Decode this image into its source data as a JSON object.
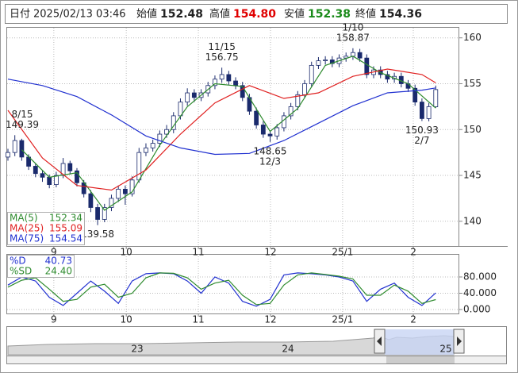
{
  "header": {
    "date_label": "日付",
    "date": "2025/02/13 03:46",
    "open_label": "始値",
    "open": "152.48",
    "high_label": "高値",
    "high": "154.80",
    "low_label": "安値",
    "low": "152.38",
    "close_label": "終値",
    "close": "154.36"
  },
  "chart_data": [
    {
      "type": "candlestick",
      "xlim": [
        0,
        130.6
      ],
      "ylim": [
        137.3,
        161.1
      ],
      "yticks": [
        140,
        145,
        150,
        155,
        160
      ],
      "xticks": [
        {
          "value": 13.3,
          "label": "9"
        },
        {
          "value": 34.3,
          "label": "10"
        },
        {
          "value": 55.2,
          "label": "11"
        },
        {
          "value": 76.1,
          "label": "12"
        },
        {
          "value": 97,
          "label": "25/1"
        },
        {
          "value": 117.5,
          "label": "2"
        }
      ],
      "grid": true,
      "up_color": "#ffffff",
      "down_color": "#1a2a6c",
      "edge_color": "#1a2a6c",
      "candles": [
        [
          0,
          147.0,
          147.9,
          146.6,
          147.5
        ],
        [
          2,
          147.5,
          149.39,
          147.1,
          148.8
        ],
        [
          4,
          148.8,
          149.0,
          146.6,
          147.0
        ],
        [
          6,
          147.0,
          147.3,
          145.6,
          146.0
        ],
        [
          8,
          146.0,
          146.3,
          144.8,
          145.2
        ],
        [
          10,
          145.2,
          145.6,
          144.3,
          144.8
        ],
        [
          12,
          144.8,
          145.1,
          143.6,
          144.0
        ],
        [
          14,
          144.0,
          145.4,
          143.7,
          145.0
        ],
        [
          16,
          145.0,
          146.9,
          144.7,
          146.3
        ],
        [
          18,
          146.3,
          146.6,
          145.1,
          145.5
        ],
        [
          20,
          145.5,
          145.8,
          143.8,
          144.2
        ],
        [
          22,
          144.2,
          144.5,
          142.6,
          143.0
        ],
        [
          24,
          143.0,
          143.4,
          141.0,
          141.5
        ],
        [
          26,
          141.5,
          141.9,
          139.58,
          140.2
        ],
        [
          28,
          140.2,
          141.9,
          139.9,
          141.5
        ],
        [
          30,
          141.5,
          142.9,
          141.1,
          142.5
        ],
        [
          32,
          142.5,
          143.9,
          142.1,
          143.5
        ],
        [
          34,
          143.5,
          143.9,
          141.8,
          143.0
        ],
        [
          36,
          143.0,
          144.9,
          142.7,
          144.5
        ],
        [
          38,
          144.5,
          148.0,
          144.2,
          147.5
        ],
        [
          40,
          147.5,
          148.5,
          147.1,
          148.0
        ],
        [
          42,
          148.0,
          148.9,
          147.6,
          148.5
        ],
        [
          44,
          148.5,
          149.9,
          148.1,
          149.5
        ],
        [
          46,
          149.5,
          150.5,
          149.1,
          150.0
        ],
        [
          48,
          150.0,
          151.9,
          149.6,
          151.5
        ],
        [
          50,
          151.5,
          153.4,
          151.1,
          153.0
        ],
        [
          52,
          153.0,
          154.5,
          152.6,
          154.0
        ],
        [
          54,
          154.0,
          154.4,
          153.0,
          153.5
        ],
        [
          56,
          153.5,
          154.4,
          153.1,
          154.0
        ],
        [
          58,
          154.0,
          155.2,
          153.6,
          154.8
        ],
        [
          60,
          154.8,
          155.9,
          154.4,
          155.5
        ],
        [
          62,
          155.5,
          156.75,
          155.1,
          156.0
        ],
        [
          64,
          156.0,
          156.4,
          154.9,
          155.3
        ],
        [
          66,
          155.3,
          155.7,
          154.4,
          154.8
        ],
        [
          68,
          154.8,
          155.2,
          153.1,
          153.5
        ],
        [
          70,
          153.5,
          153.9,
          151.6,
          152.0
        ],
        [
          72,
          152.0,
          152.4,
          150.1,
          150.5
        ],
        [
          74,
          150.5,
          150.9,
          149.1,
          149.5
        ],
        [
          76,
          149.5,
          149.9,
          148.65,
          149.3
        ],
        [
          78,
          149.3,
          150.6,
          148.9,
          150.2
        ],
        [
          80,
          150.2,
          151.9,
          149.8,
          151.5
        ],
        [
          82,
          151.5,
          152.9,
          151.1,
          152.5
        ],
        [
          84,
          152.5,
          154.2,
          152.1,
          153.8
        ],
        [
          86,
          153.8,
          155.4,
          153.4,
          155.0
        ],
        [
          88,
          155.0,
          157.4,
          154.6,
          157.0
        ],
        [
          90,
          157.0,
          157.9,
          156.6,
          157.5
        ],
        [
          92,
          157.5,
          158.0,
          157.1,
          157.6
        ],
        [
          94,
          157.6,
          158.0,
          156.8,
          157.2
        ],
        [
          96,
          157.2,
          158.2,
          156.8,
          157.8
        ],
        [
          98,
          157.8,
          158.4,
          157.4,
          158.0
        ],
        [
          100,
          158.0,
          158.87,
          157.6,
          158.4
        ],
        [
          102,
          158.4,
          158.8,
          157.4,
          157.8
        ],
        [
          104,
          157.8,
          158.2,
          155.6,
          156.0
        ],
        [
          106,
          156.0,
          156.9,
          155.6,
          156.5
        ],
        [
          108,
          156.5,
          156.9,
          155.6,
          156.0
        ],
        [
          110,
          156.0,
          156.4,
          155.1,
          155.5
        ],
        [
          112,
          155.5,
          156.2,
          155.1,
          155.8
        ],
        [
          114,
          155.8,
          156.2,
          154.6,
          155.0
        ],
        [
          116,
          155.0,
          155.4,
          154.1,
          154.5
        ],
        [
          118,
          154.5,
          154.9,
          152.6,
          153.0
        ],
        [
          120,
          153.0,
          153.4,
          150.93,
          151.2
        ],
        [
          122,
          151.2,
          152.9,
          150.9,
          152.5
        ],
        [
          124,
          152.48,
          154.8,
          152.38,
          154.36
        ]
      ],
      "series": [
        {
          "name": "MA(5)",
          "last": "152.34",
          "color": "#2e8b2e",
          "x": [
            4,
            12,
            20,
            28,
            36,
            44,
            52,
            60,
            68,
            76,
            84,
            92,
            100,
            108,
            116,
            124
          ],
          "values": [
            147.8,
            144.8,
            145.3,
            141.2,
            143.2,
            148.3,
            152.5,
            155.0,
            154.7,
            149.8,
            152.3,
            157.0,
            158.0,
            156.2,
            155.0,
            152.34
          ]
        },
        {
          "name": "MA(25)",
          "last": "155.09",
          "color": "#e02020",
          "x": [
            0,
            10,
            20,
            30,
            40,
            50,
            60,
            70,
            80,
            90,
            100,
            110,
            120,
            124
          ],
          "values": [
            152.1,
            146.9,
            143.9,
            143.4,
            145.6,
            149.5,
            152.9,
            154.8,
            153.4,
            154.0,
            155.8,
            156.6,
            156.0,
            155.09
          ]
        },
        {
          "name": "MA(75)",
          "last": "154.54",
          "color": "#2030d0",
          "x": [
            0,
            10,
            20,
            30,
            40,
            50,
            60,
            70,
            80,
            90,
            100,
            110,
            120,
            124
          ],
          "values": [
            155.5,
            154.8,
            153.6,
            151.6,
            149.3,
            148.0,
            147.3,
            147.4,
            148.8,
            150.7,
            152.6,
            154.0,
            154.3,
            154.54
          ]
        }
      ],
      "annotations": [
        {
          "date": "8/15",
          "value": 149.39,
          "x": 2,
          "position": "above"
        },
        {
          "value": 139.58,
          "x": 26,
          "position": "below"
        },
        {
          "date": "11/15",
          "value": 156.75,
          "x": 62,
          "position": "above"
        },
        {
          "date": "12/3",
          "value": 148.65,
          "x": 76,
          "position": "below"
        },
        {
          "date": "1/10",
          "value": 158.87,
          "x": 100,
          "position": "above"
        },
        {
          "date": "2/7",
          "value": 150.93,
          "x": 120,
          "position": "below"
        }
      ]
    },
    {
      "type": "line",
      "xlim": [
        0,
        130.6
      ],
      "ylim": [
        -9.8,
        130.7
      ],
      "yticks": [
        {
          "value": 80,
          "label": "80.000"
        },
        {
          "value": 40,
          "label": "40.000"
        },
        {
          "value": 0,
          "label": "0.000"
        }
      ],
      "xticks": [
        {
          "value": 13.3,
          "label": "9"
        },
        {
          "value": 34.3,
          "label": "10"
        },
        {
          "value": 55.2,
          "label": "11"
        },
        {
          "value": 76.1,
          "label": "12"
        },
        {
          "value": 97,
          "label": "25/1"
        },
        {
          "value": 117.5,
          "label": "2"
        }
      ],
      "grid": true,
      "series": [
        {
          "name": "%D",
          "last": "40.73",
          "color": "#2030d0",
          "x": [
            0,
            4,
            8,
            12,
            16,
            20,
            24,
            28,
            32,
            36,
            40,
            44,
            48,
            52,
            56,
            60,
            64,
            68,
            72,
            76,
            80,
            84,
            88,
            92,
            96,
            100,
            104,
            108,
            112,
            116,
            120,
            124
          ],
          "values": [
            60,
            80,
            70,
            30,
            10,
            40,
            70,
            45,
            15,
            70,
            88,
            90,
            88,
            70,
            40,
            80,
            65,
            20,
            8,
            25,
            85,
            90,
            88,
            85,
            80,
            70,
            20,
            50,
            65,
            30,
            10,
            40.73
          ]
        },
        {
          "name": "%SD",
          "last": "24.40",
          "color": "#2e8b2e",
          "x": [
            0,
            4,
            8,
            12,
            16,
            20,
            24,
            28,
            32,
            36,
            40,
            44,
            48,
            52,
            56,
            60,
            64,
            68,
            72,
            76,
            80,
            84,
            88,
            92,
            96,
            100,
            104,
            108,
            112,
            116,
            120,
            124
          ],
          "values": [
            55,
            72,
            78,
            50,
            20,
            25,
            55,
            62,
            30,
            40,
            78,
            90,
            89,
            78,
            50,
            65,
            72,
            35,
            12,
            15,
            60,
            85,
            90,
            86,
            82,
            75,
            35,
            35,
            60,
            45,
            15,
            24.4
          ]
        }
      ]
    },
    {
      "type": "navigator",
      "labels": [
        "23",
        "24",
        "25"
      ]
    }
  ]
}
